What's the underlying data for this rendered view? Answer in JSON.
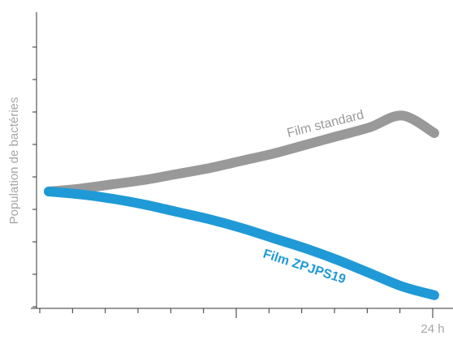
{
  "chart_data": {
    "type": "line",
    "title": "",
    "xlabel": "",
    "ylabel": "Population de bactéries",
    "x_tick_labels": [
      "24 h"
    ],
    "x": [
      0,
      2,
      4,
      6,
      8,
      10,
      12,
      14,
      16,
      18,
      20,
      22,
      24
    ],
    "xlim": [
      0,
      24
    ],
    "ylim": [
      0,
      10
    ],
    "grid": false,
    "legend": "none",
    "series": [
      {
        "name": "Film standard",
        "color": "#999999",
        "values": [
          4.0,
          4.1,
          4.25,
          4.4,
          4.6,
          4.8,
          5.05,
          5.3,
          5.6,
          5.9,
          6.2,
          6.6,
          6.0
        ]
      },
      {
        "name": "Film ZPJPS19",
        "color": "#1f9ad6",
        "values": [
          4.0,
          3.9,
          3.75,
          3.55,
          3.3,
          3.05,
          2.75,
          2.4,
          2.05,
          1.65,
          1.2,
          0.75,
          0.45
        ]
      }
    ]
  }
}
